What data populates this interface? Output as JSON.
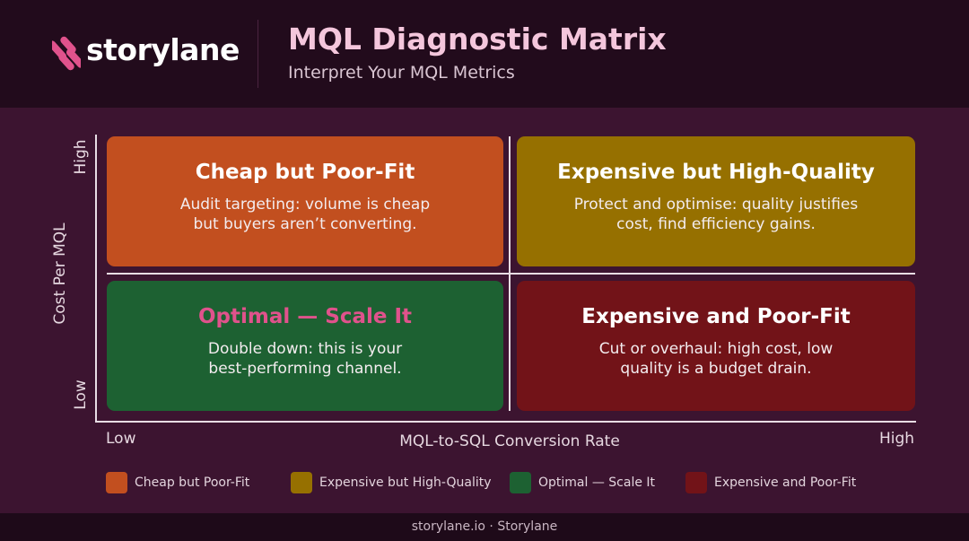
{
  "header": {
    "brand": "storylane",
    "title": "MQL Diagnostic Matrix",
    "subtitle": "Interpret Your MQL Metrics",
    "logo_icon": "storylane-logo-icon"
  },
  "axes": {
    "y_label": "Cost Per MQL",
    "y_high": "High",
    "y_low": "Low",
    "x_label": "MQL-to-SQL Conversion Rate",
    "x_low": "Low",
    "x_high": "High"
  },
  "quadrants": [
    {
      "title": "Cheap but Poor-Fit",
      "description_line1": "Audit targeting: volume is cheap",
      "description_line2": "but buyers aren’t converting.",
      "color": "#c24f1f"
    },
    {
      "title": "Expensive but High-Quality",
      "description_line1": "Protect and optimise: quality justifies",
      "description_line2": "cost, find efficiency gains.",
      "color": "#967000"
    },
    {
      "title": "Optimal — Scale It",
      "description_line1": "Double down: this is your",
      "description_line2": "best-performing channel.",
      "color": "#1d6132",
      "title_color": "#e0528c"
    },
    {
      "title": "Expensive and Poor-Fit",
      "description_line1": "Cut or overhaul: high cost, low",
      "description_line2": "quality is a budget drain.",
      "color": "#721318"
    }
  ],
  "legend": [
    {
      "label": "Cheap but Poor-Fit",
      "color": "#c24f1f"
    },
    {
      "label": "Expensive but High-Quality",
      "color": "#967000"
    },
    {
      "label": "Optimal — Scale It",
      "color": "#1d6132"
    },
    {
      "label": "Expensive and Poor-Fit",
      "color": "#721318"
    }
  ],
  "footer": {
    "text": "storylane.io · Storylane"
  }
}
